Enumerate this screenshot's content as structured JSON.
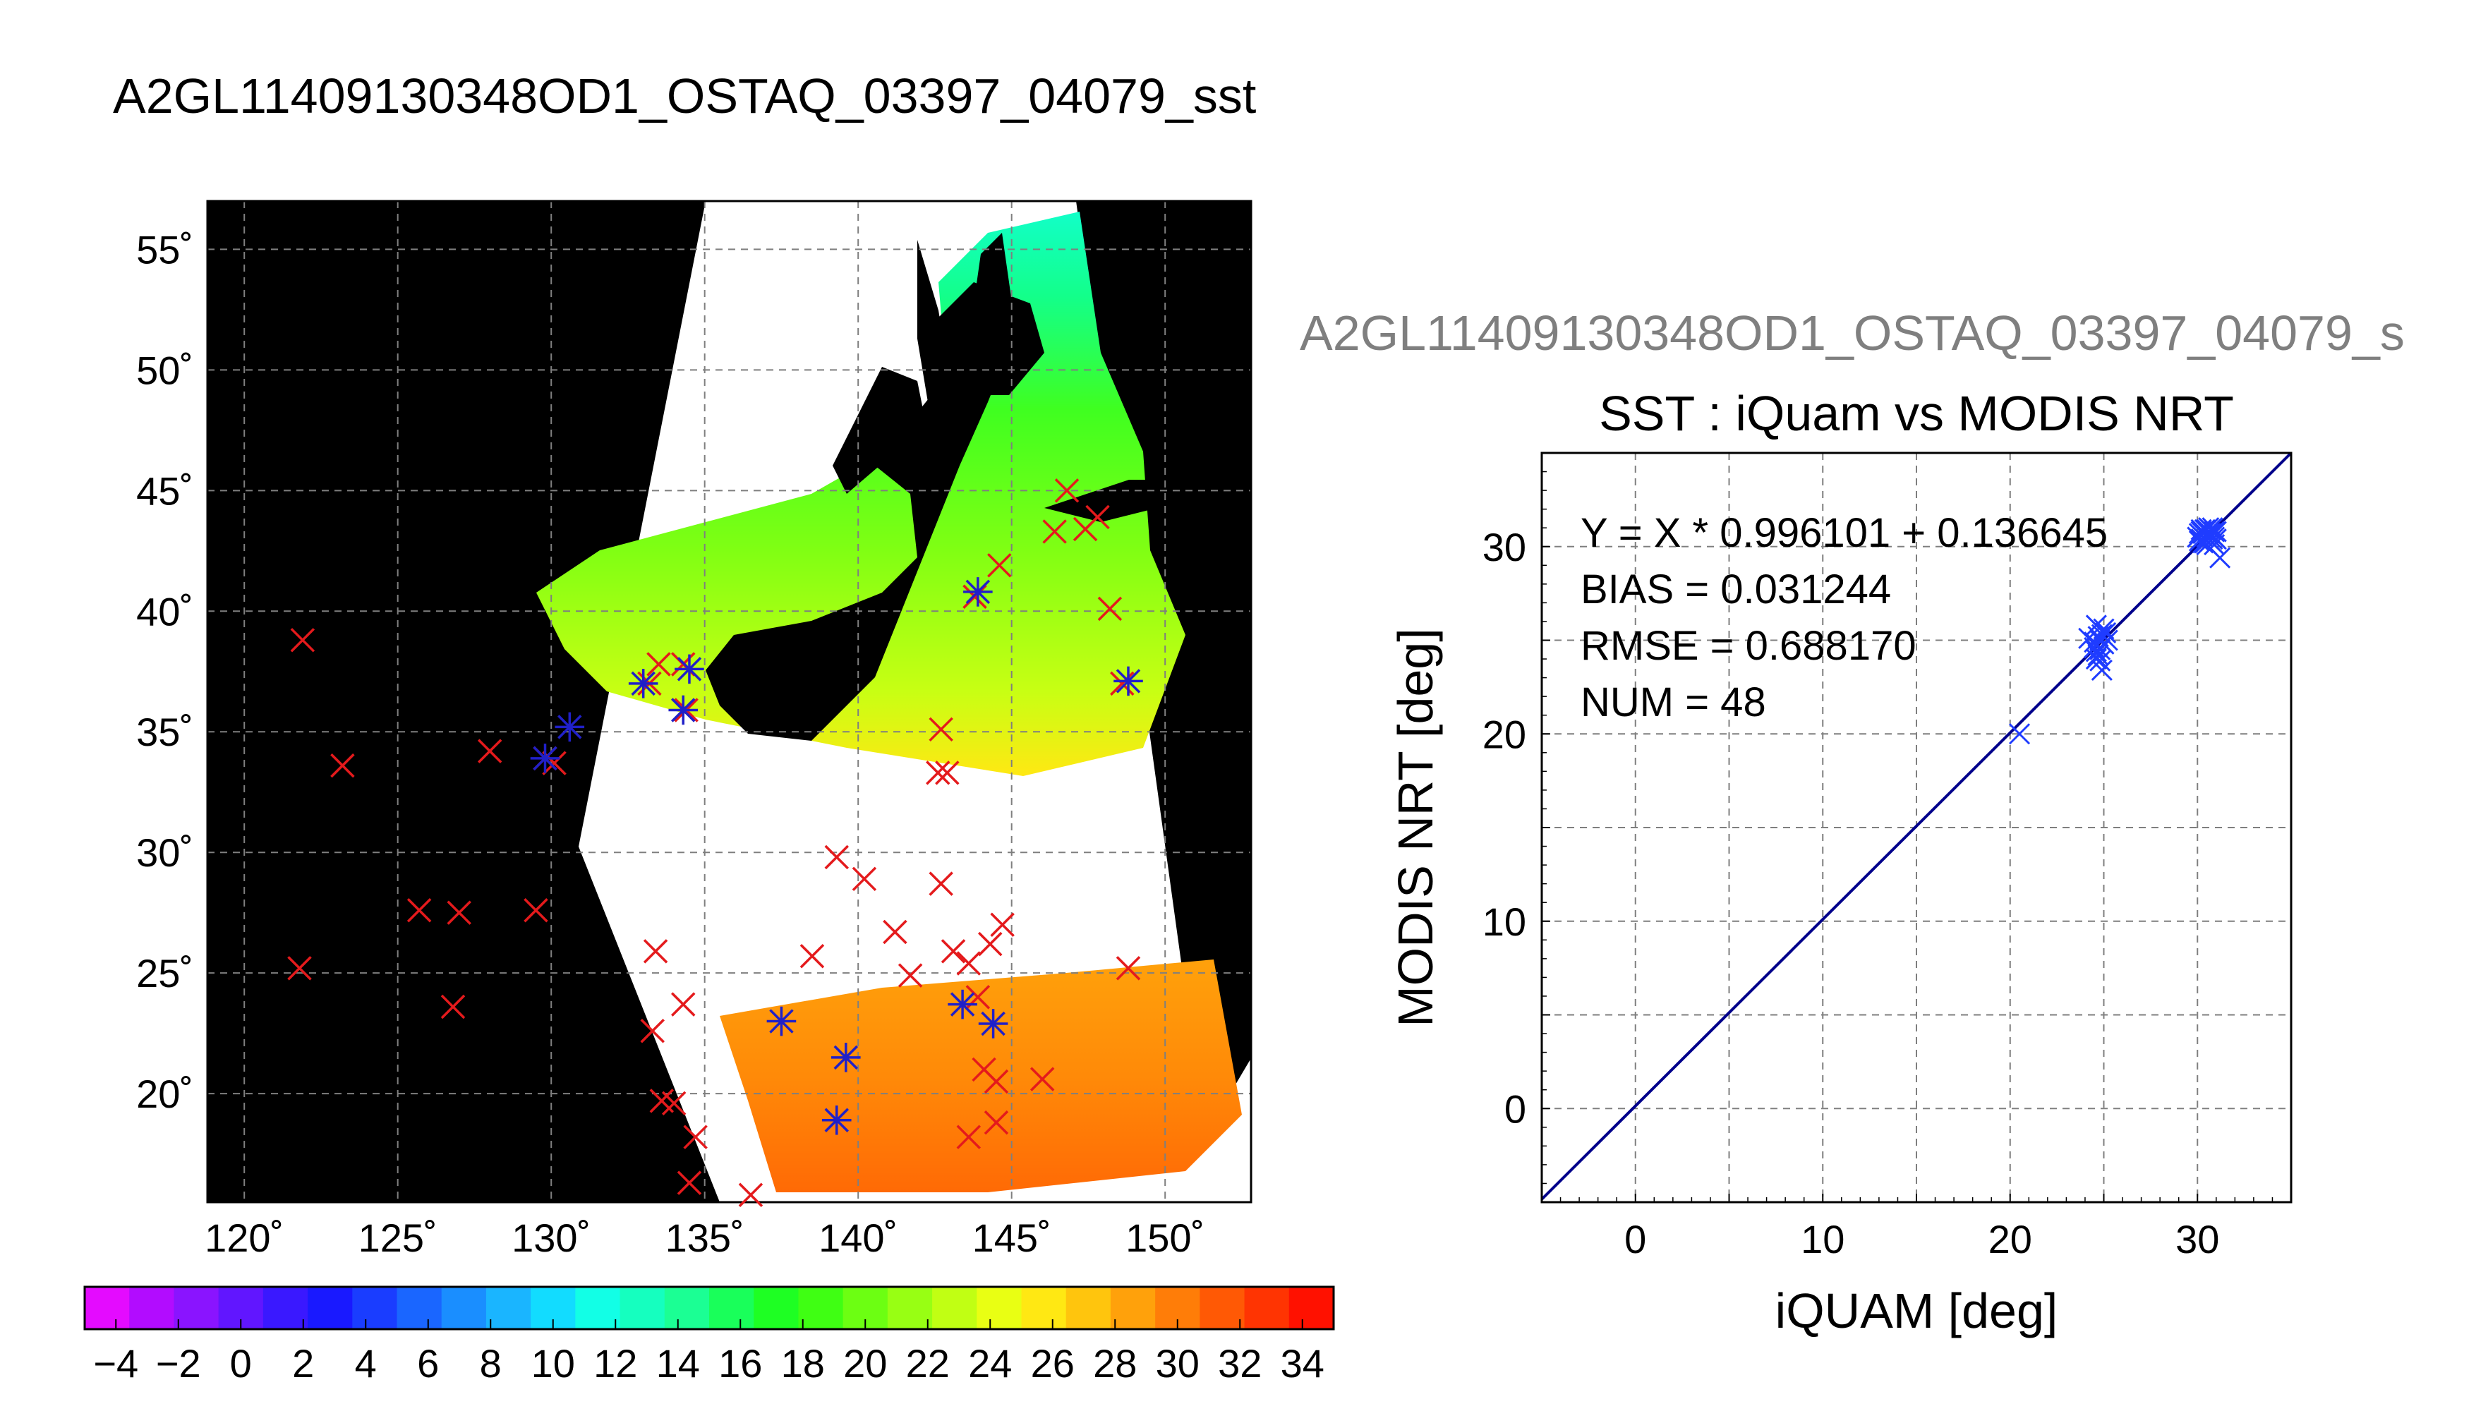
{
  "page_title": "A2GL11409130348OD1_OSTAQ_03397_04079_sst",
  "colors": {
    "black": "#000000",
    "land_white": "#ffffff",
    "grid": "#7f7f7f",
    "insitu_marker": "#e41a1c",
    "matchup_marker": "#2020c8",
    "scatter_marker": "#1f3cff",
    "fit_line": "#00008b",
    "subtitle_gray": "#7f7f7f"
  },
  "chart_data": [
    {
      "type": "map",
      "projection": "equirectangular",
      "title": "A2GL11409130348OD1_OSTAQ_03397_04079_sst",
      "lon_range": [
        118.8,
        152.8
      ],
      "lat_range": [
        15.5,
        57.0
      ],
      "lon_ticks": [
        120,
        125,
        130,
        135,
        140,
        145,
        150
      ],
      "lat_ticks": [
        20,
        25,
        30,
        35,
        40,
        45,
        50,
        55
      ],
      "lon_tick_labels": [
        "120˚",
        "125˚",
        "130˚",
        "135˚",
        "140˚",
        "145˚",
        "150˚"
      ],
      "lat_tick_labels": [
        "20˚",
        "25˚",
        "30˚",
        "35˚",
        "40˚",
        "45˚",
        "50˚",
        "55˚"
      ],
      "grid": true,
      "insitu_points": [
        [
          121.9,
          38.8
        ],
        [
          123.2,
          33.6
        ],
        [
          121.8,
          25.2
        ],
        [
          125.7,
          27.6
        ],
        [
          127.0,
          27.5
        ],
        [
          126.8,
          23.6
        ],
        [
          129.5,
          27.6
        ],
        [
          128.0,
          34.2
        ],
        [
          129.8,
          33.9
        ],
        [
          130.1,
          33.7
        ],
        [
          133.2,
          37.0
        ],
        [
          133.5,
          37.8
        ],
        [
          134.3,
          37.8
        ],
        [
          134.4,
          35.9
        ],
        [
          133.4,
          25.9
        ],
        [
          133.3,
          22.6
        ],
        [
          134.3,
          23.7
        ],
        [
          133.6,
          19.7
        ],
        [
          134.0,
          19.6
        ],
        [
          134.7,
          18.2
        ],
        [
          134.5,
          16.3
        ],
        [
          136.5,
          15.8
        ],
        [
          138.5,
          25.7
        ],
        [
          139.3,
          29.8
        ],
        [
          140.2,
          28.9
        ],
        [
          141.2,
          26.7
        ],
        [
          141.7,
          24.9
        ],
        [
          142.7,
          28.7
        ],
        [
          142.7,
          35.1
        ],
        [
          142.6,
          33.3
        ],
        [
          142.9,
          33.3
        ],
        [
          143.1,
          25.9
        ],
        [
          143.6,
          25.4
        ],
        [
          143.9,
          24.0
        ],
        [
          144.3,
          26.2
        ],
        [
          144.7,
          27.0
        ],
        [
          144.1,
          21.0
        ],
        [
          144.5,
          20.5
        ],
        [
          143.6,
          18.2
        ],
        [
          144.5,
          18.8
        ],
        [
          146.0,
          20.6
        ],
        [
          144.6,
          41.9
        ],
        [
          143.8,
          40.6
        ],
        [
          146.4,
          43.3
        ],
        [
          146.8,
          45.0
        ],
        [
          147.4,
          43.4
        ],
        [
          147.8,
          43.9
        ],
        [
          148.2,
          40.1
        ],
        [
          148.6,
          37.0
        ],
        [
          148.8,
          25.2
        ]
      ],
      "matchup_points": [
        [
          130.6,
          35.2
        ],
        [
          133.0,
          37.0
        ],
        [
          134.5,
          37.6
        ],
        [
          134.3,
          35.9
        ],
        [
          129.8,
          33.9
        ],
        [
          137.5,
          23.0
        ],
        [
          139.6,
          21.5
        ],
        [
          139.3,
          18.9
        ],
        [
          143.4,
          23.7
        ],
        [
          144.4,
          22.9
        ],
        [
          143.9,
          40.8
        ],
        [
          148.8,
          37.1
        ]
      ],
      "colorbar": {
        "min": -5,
        "max": 35,
        "tick_values": [
          -4,
          -2,
          0,
          2,
          4,
          6,
          8,
          10,
          12,
          14,
          16,
          18,
          20,
          22,
          24,
          26,
          28,
          30,
          32,
          34
        ],
        "tick_labels": [
          "−4",
          "−2",
          "0",
          "2",
          "4",
          "6",
          "8",
          "10",
          "12",
          "14",
          "16",
          "18",
          "20",
          "22",
          "24",
          "26",
          "28",
          "30",
          "32",
          "34"
        ],
        "colors": [
          "#e40bff",
          "#b20cff",
          "#8a14ff",
          "#6116ff",
          "#3a18ff",
          "#1919ff",
          "#1a3dff",
          "#1a66ff",
          "#1a8eff",
          "#1ab5ff",
          "#12dcff",
          "#12ffe6",
          "#15ffbf",
          "#1bff94",
          "#19ff5a",
          "#1eff23",
          "#3fff13",
          "#6cff12",
          "#98ff13",
          "#c1ff13",
          "#e9ff13",
          "#ffe813",
          "#ffc50d",
          "#ffa10b",
          "#ff7d08",
          "#ff5905",
          "#ff3402",
          "#ff1100"
        ]
      }
    },
    {
      "type": "scatter",
      "subtitle": "A2GL11409130348OD1_OSTAQ_03397_04079_s",
      "title": "SST : iQuam vs MODIS NRT",
      "xlabel": "iQUAM [deg]",
      "ylabel": "MODIS NRT [deg]",
      "xlim": [
        -5,
        35
      ],
      "ylim": [
        -5,
        35
      ],
      "x_ticks": [
        0,
        10,
        20,
        30
      ],
      "y_ticks": [
        0,
        10,
        20,
        30
      ],
      "x_tick_labels": [
        "0",
        "10",
        "20",
        "30"
      ],
      "y_tick_labels": [
        "0",
        "10",
        "20",
        "30"
      ],
      "minor_grid_step": 5,
      "grid": true,
      "stats": [
        "Y = X * 0.996101 + 0.136645",
        "BIAS = 0.031244",
        "RMSE = 0.688170",
        "NUM = 48"
      ],
      "fit": {
        "slope": 0.996101,
        "intercept": 0.136645
      },
      "points": [
        [
          20.5,
          20.0
        ],
        [
          24.2,
          25.1
        ],
        [
          24.5,
          24.6
        ],
        [
          24.6,
          25.8
        ],
        [
          24.7,
          24.2
        ],
        [
          24.8,
          23.9
        ],
        [
          24.9,
          23.4
        ],
        [
          24.5,
          24.9
        ],
        [
          24.9,
          25.3
        ],
        [
          25.0,
          25.6
        ],
        [
          25.2,
          25.0
        ],
        [
          24.8,
          24.5
        ],
        [
          24.6,
          24.0
        ],
        [
          25.0,
          24.8
        ],
        [
          24.7,
          25.2
        ],
        [
          25.1,
          25.4
        ],
        [
          30.0,
          30.5
        ],
        [
          30.2,
          30.8
        ],
        [
          30.3,
          30.2
        ],
        [
          30.4,
          30.6
        ],
        [
          30.5,
          30.9
        ],
        [
          30.6,
          30.4
        ],
        [
          30.7,
          30.7
        ],
        [
          30.8,
          31.0
        ],
        [
          30.9,
          30.5
        ],
        [
          31.0,
          30.8
        ],
        [
          31.2,
          29.4
        ],
        [
          30.1,
          30.3
        ],
        [
          30.3,
          30.7
        ],
        [
          30.5,
          30.1
        ],
        [
          30.6,
          31.0
        ],
        [
          30.8,
          30.6
        ],
        [
          30.2,
          30.4
        ],
        [
          30.4,
          30.9
        ],
        [
          30.7,
          30.3
        ],
        [
          30.9,
          30.8
        ],
        [
          30.5,
          30.5
        ],
        [
          30.6,
          30.7
        ],
        [
          30.3,
          30.5
        ],
        [
          30.4,
          30.2
        ],
        [
          30.7,
          30.9
        ],
        [
          30.8,
          30.4
        ],
        [
          24.6,
          24.4
        ],
        [
          24.8,
          25.0
        ],
        [
          30.1,
          30.7
        ],
        [
          30.9,
          30.1
        ],
        [
          31.0,
          30.4
        ],
        [
          30.2,
          30.9
        ]
      ]
    }
  ]
}
